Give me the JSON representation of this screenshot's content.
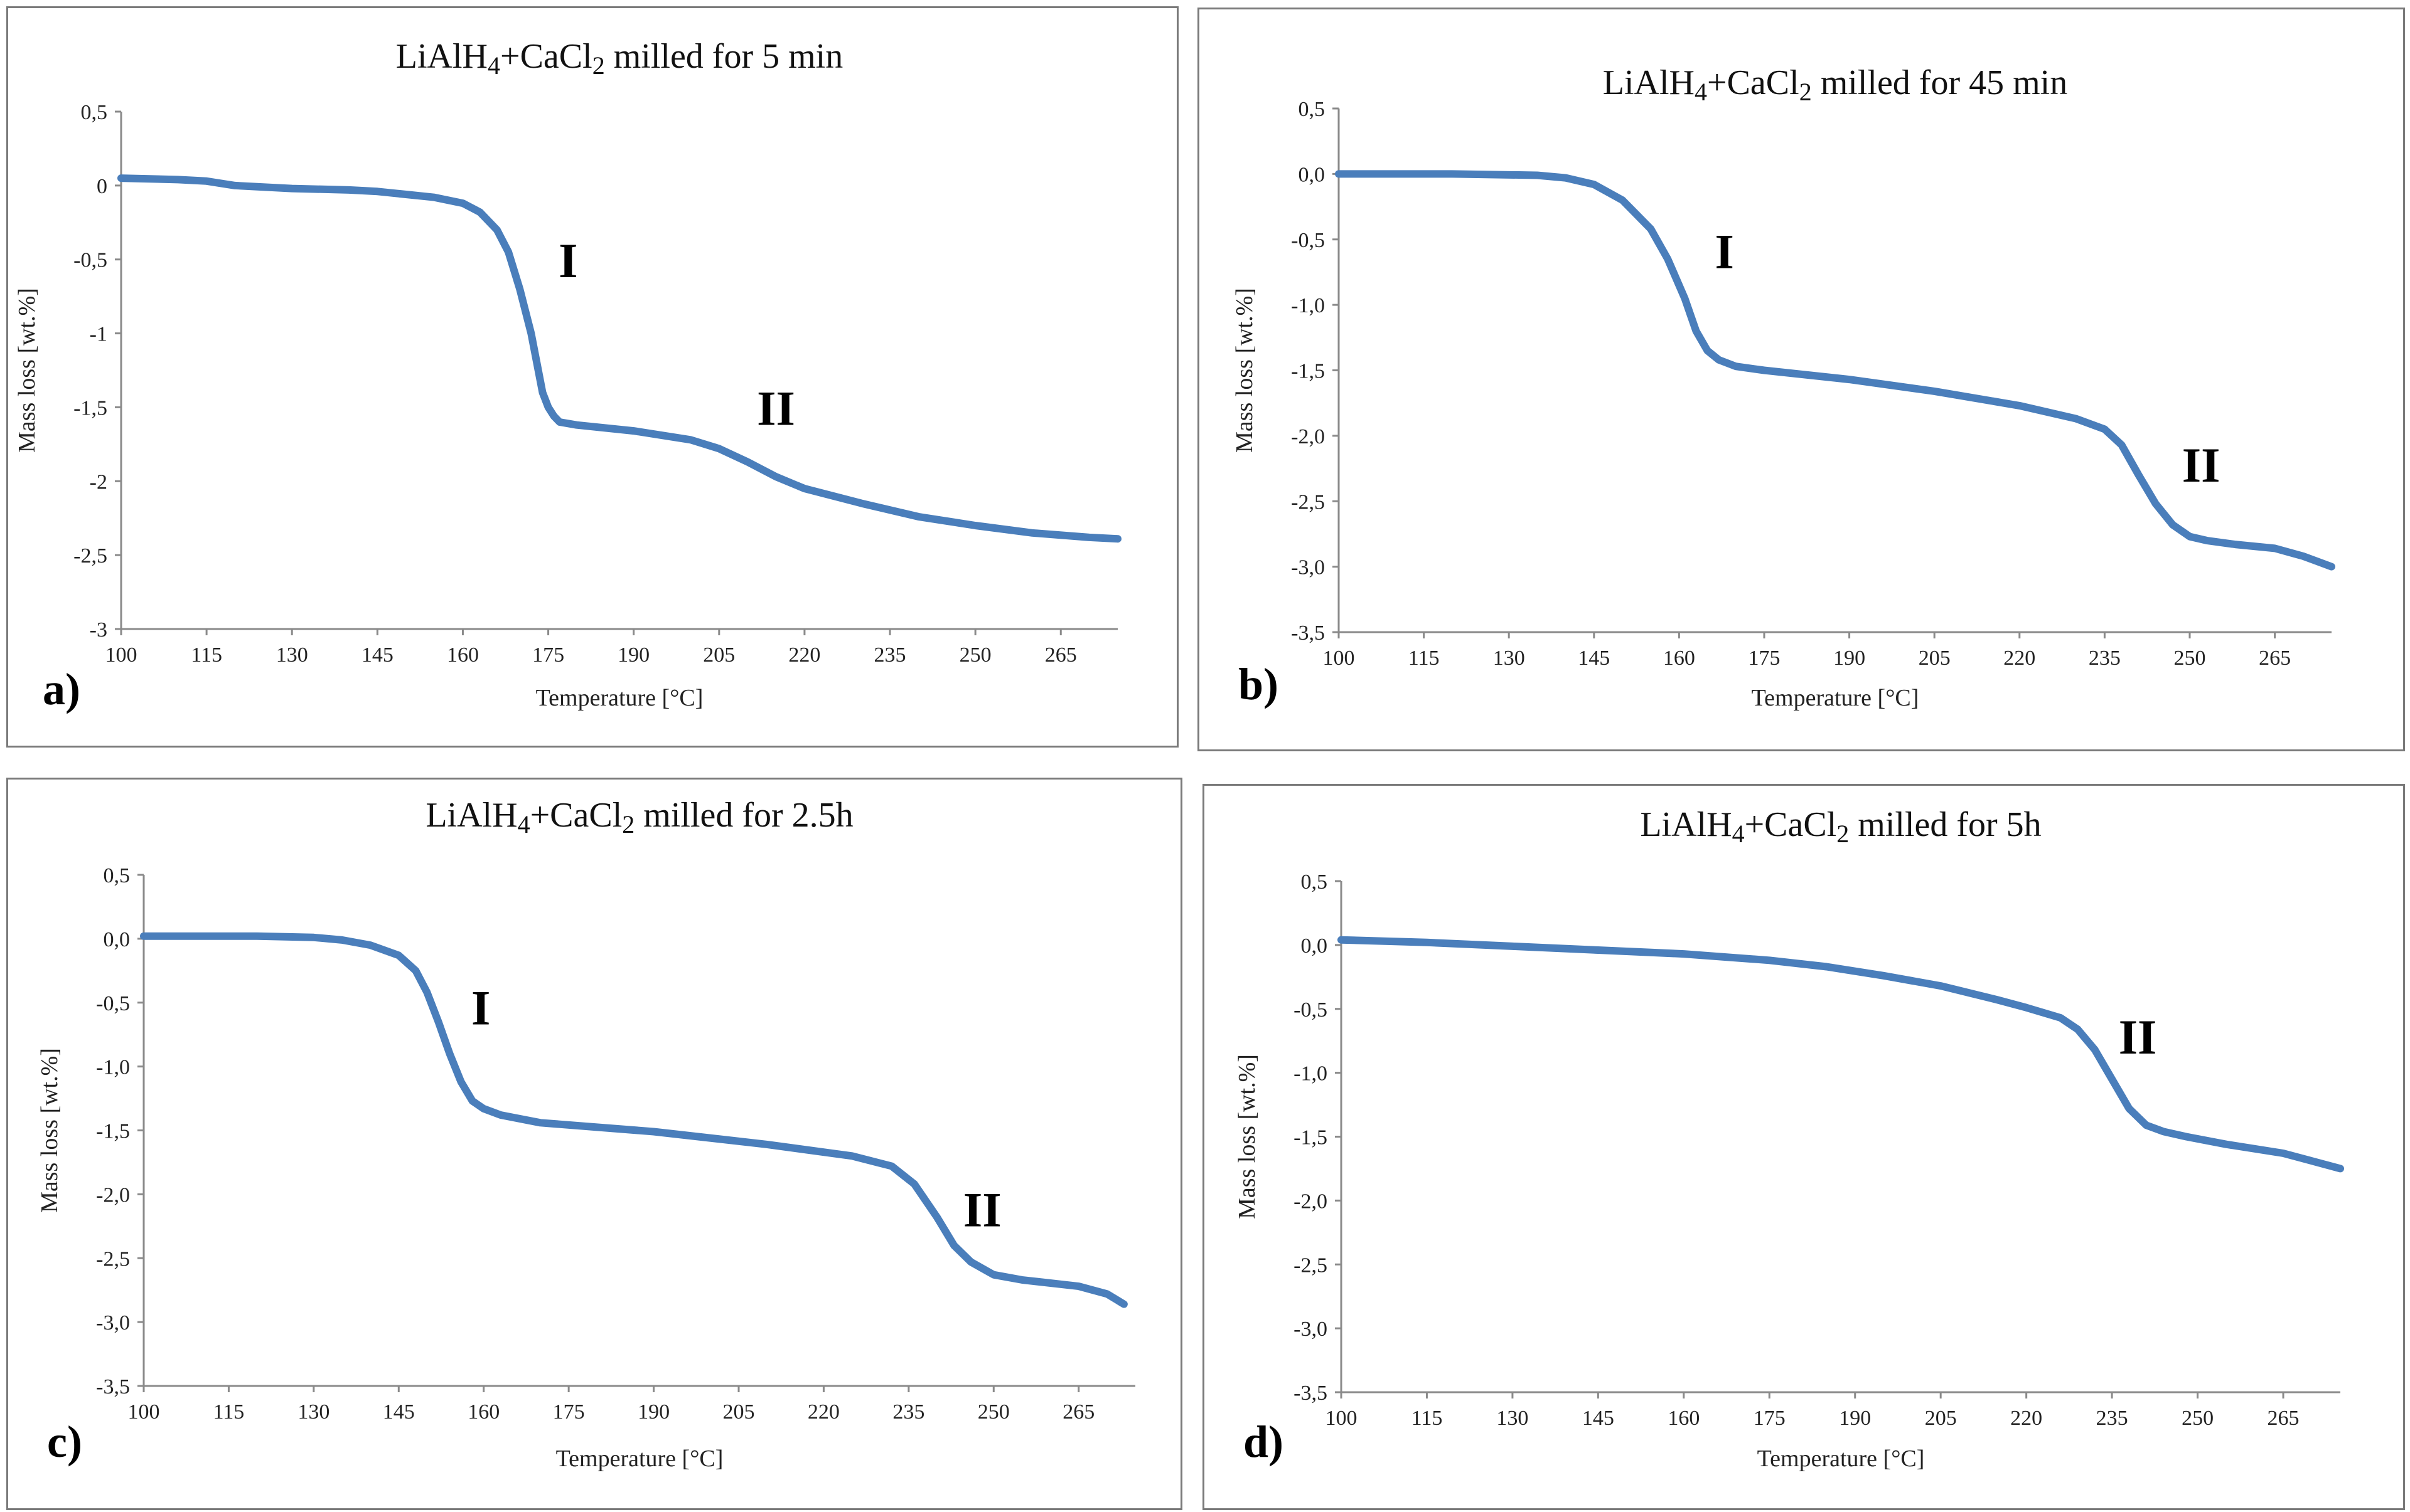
{
  "line_color": "#4a7ebb",
  "chart_data": [
    {
      "type": "line",
      "panel": "a)",
      "title": "LiAlH4+CaCl2 milled for 5 min",
      "title_parts": [
        "LiAlH",
        "4",
        "+CaCl",
        "2",
        " milled for 5 min"
      ],
      "xlabel": "Temperature [°C]",
      "ylabel": "Mass loss [wt.%]",
      "xlim": [
        100,
        275
      ],
      "ylim": [
        -3,
        0.5
      ],
      "x_ticks": [
        "100",
        "115",
        "130",
        "145",
        "160",
        "175",
        "190",
        "205",
        "220",
        "235",
        "250",
        "265"
      ],
      "y_ticks": [
        "0,5",
        "0",
        "-0,5",
        "-1",
        "-1,5",
        "-2",
        "-2,5",
        "-3"
      ],
      "x": [
        100,
        110,
        115,
        120,
        130,
        140,
        145,
        150,
        155,
        160,
        163,
        166,
        168,
        170,
        172,
        174,
        175,
        176,
        177,
        180,
        190,
        200,
        205,
        210,
        215,
        220,
        230,
        240,
        250,
        260,
        270,
        275
      ],
      "y": [
        0.05,
        0.04,
        0.03,
        0.0,
        -0.02,
        -0.03,
        -0.04,
        -0.06,
        -0.08,
        -0.12,
        -0.18,
        -0.3,
        -0.45,
        -0.7,
        -1.0,
        -1.4,
        -1.5,
        -1.56,
        -1.6,
        -1.62,
        -1.66,
        -1.72,
        -1.78,
        -1.87,
        -1.97,
        -2.05,
        -2.15,
        -2.24,
        -2.3,
        -2.35,
        -2.38,
        -2.39
      ],
      "annotations": [
        {
          "text": "I",
          "x": 178.5,
          "y": -0.62
        },
        {
          "text": "II",
          "x": 215,
          "y": -1.62
        }
      ]
    },
    {
      "type": "line",
      "panel": "b)",
      "title": "LiAlH4+CaCl2 milled for 45 min",
      "title_parts": [
        "LiAlH",
        "4",
        "+CaCl",
        "2",
        " milled for 45 min"
      ],
      "xlabel": "Temperature [°C]",
      "ylabel": "Mass loss [wt.%]",
      "xlim": [
        100,
        275
      ],
      "ylim": [
        -3.5,
        0.5
      ],
      "x_ticks": [
        "100",
        "115",
        "130",
        "145",
        "160",
        "175",
        "190",
        "205",
        "220",
        "235",
        "250",
        "265"
      ],
      "y_ticks": [
        "0,5",
        "0,0",
        "-0,5",
        "-1,0",
        "-1,5",
        "-2,0",
        "-2,5",
        "-3,0",
        "-3,5"
      ],
      "x": [
        100,
        120,
        135,
        140,
        145,
        150,
        155,
        158,
        161,
        163,
        165,
        167,
        170,
        175,
        190,
        205,
        220,
        230,
        235,
        238,
        241,
        244,
        247,
        250,
        253,
        258,
        265,
        270,
        275
      ],
      "y": [
        0.0,
        0.0,
        -0.01,
        -0.03,
        -0.08,
        -0.2,
        -0.42,
        -0.65,
        -0.95,
        -1.2,
        -1.35,
        -1.42,
        -1.47,
        -1.5,
        -1.57,
        -1.66,
        -1.77,
        -1.87,
        -1.95,
        -2.07,
        -2.3,
        -2.52,
        -2.68,
        -2.77,
        -2.8,
        -2.83,
        -2.86,
        -2.92,
        -3.0
      ],
      "annotations": [
        {
          "text": "I",
          "x": 168,
          "y": -0.72
        },
        {
          "text": "II",
          "x": 252,
          "y": -2.35
        }
      ]
    },
    {
      "type": "line",
      "panel": "c)",
      "title": "LiAlH4+CaCl2 milled for 2.5h",
      "title_parts": [
        "LiAlH",
        "4",
        "+CaCl",
        "2",
        " milled for 2.5h"
      ],
      "xlabel": "Temperature [°C]",
      "ylabel": "Mass loss [wt.%]",
      "xlim": [
        100,
        275
      ],
      "ylim": [
        -3.5,
        0.5
      ],
      "x_ticks": [
        "100",
        "115",
        "130",
        "145",
        "160",
        "175",
        "190",
        "205",
        "220",
        "235",
        "250",
        "265"
      ],
      "y_ticks": [
        "0,5",
        "0,0",
        "-0,5",
        "-1,0",
        "-1,5",
        "-2,0",
        "-2,5",
        "-3,0",
        "-3,5"
      ],
      "x": [
        100,
        120,
        130,
        135,
        140,
        145,
        148,
        150,
        152,
        154,
        156,
        158,
        160,
        163,
        170,
        190,
        210,
        225,
        232,
        236,
        240,
        243,
        246,
        250,
        255,
        265,
        270,
        273
      ],
      "y": [
        0.02,
        0.02,
        0.01,
        -0.01,
        -0.05,
        -0.13,
        -0.25,
        -0.42,
        -0.65,
        -0.9,
        -1.12,
        -1.27,
        -1.33,
        -1.38,
        -1.44,
        -1.51,
        -1.61,
        -1.7,
        -1.78,
        -1.92,
        -2.18,
        -2.4,
        -2.53,
        -2.63,
        -2.67,
        -2.72,
        -2.78,
        -2.86
      ],
      "annotations": [
        {
          "text": "I",
          "x": 159.5,
          "y": -0.67
        },
        {
          "text": "II",
          "x": 248,
          "y": -2.25
        }
      ]
    },
    {
      "type": "line",
      "panel": "d)",
      "title": "LiAlH4+CaCl2 milled for 5h",
      "title_parts": [
        "LiAlH",
        "4",
        "+CaCl",
        "2",
        " milled for 5h"
      ],
      "xlabel": "Temperature [°C]",
      "ylabel": "Mass loss [wt.%]",
      "xlim": [
        100,
        275
      ],
      "ylim": [
        -3.5,
        0.5
      ],
      "x_ticks": [
        "100",
        "115",
        "130",
        "145",
        "160",
        "175",
        "190",
        "205",
        "220",
        "235",
        "250",
        "265"
      ],
      "y_ticks": [
        "0,5",
        "0,0",
        "-0,5",
        "-1,0",
        "-1,5",
        "-2,0",
        "-2,5",
        "-3,0",
        "-3,5"
      ],
      "x": [
        100,
        115,
        130,
        145,
        160,
        175,
        185,
        195,
        205,
        215,
        220,
        226,
        229,
        232,
        235,
        238,
        241,
        244,
        248,
        255,
        265,
        275
      ],
      "y": [
        0.04,
        0.02,
        -0.01,
        -0.04,
        -0.07,
        -0.12,
        -0.17,
        -0.24,
        -0.32,
        -0.43,
        -0.49,
        -0.57,
        -0.66,
        -0.82,
        -1.05,
        -1.28,
        -1.41,
        -1.46,
        -1.5,
        -1.56,
        -1.63,
        -1.75
      ],
      "annotations": [
        {
          "text": "II",
          "x": 239.5,
          "y": -0.85
        }
      ]
    }
  ]
}
